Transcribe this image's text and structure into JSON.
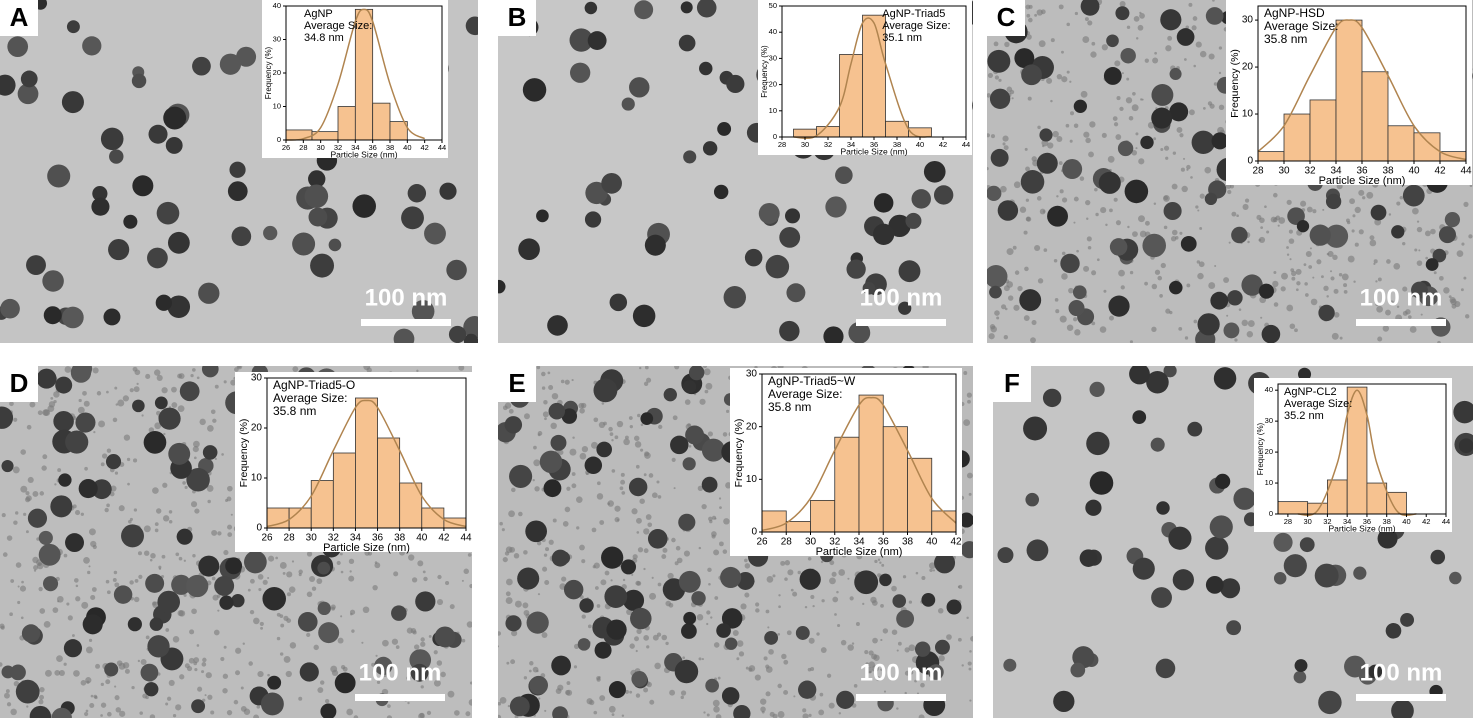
{
  "panels": [
    {
      "label": "A",
      "scale_bar": "100 nm"
    },
    {
      "label": "B",
      "scale_bar": "100 nm"
    },
    {
      "label": "C",
      "scale_bar": "100 nm"
    },
    {
      "label": "D",
      "scale_bar": "100 nm"
    },
    {
      "label": "E",
      "scale_bar": "100 nm"
    },
    {
      "label": "F",
      "scale_bar": "100 nm"
    }
  ],
  "chart_data": [
    {
      "type": "histogram",
      "annotations": [
        "AgNP",
        "Average Size:",
        "34.8 nm"
      ],
      "x_label": "Particle Size (nm)",
      "y_label": "Frequency (%)",
      "bins": [
        26,
        29,
        32,
        34,
        36,
        38,
        40
      ],
      "values": [
        3,
        2.5,
        10,
        39,
        11,
        5.5
      ],
      "color": "#f6c290",
      "fit": {
        "color": "#b0844f",
        "x": [
          26,
          28,
          30,
          32,
          34,
          35,
          36,
          38,
          40,
          42
        ],
        "values": [
          0,
          0.4,
          3.7,
          16.7,
          35.4,
          39,
          35.4,
          16.7,
          3.7,
          0.4
        ]
      },
      "xlim": [
        26,
        44
      ],
      "xticks": [
        26,
        28,
        30,
        32,
        34,
        36,
        38,
        40,
        42,
        44
      ],
      "ylim": [
        0,
        40
      ],
      "yticks": [
        0,
        10,
        20,
        30,
        40
      ]
    },
    {
      "type": "histogram",
      "annotations": [
        "AgNP-Triad5",
        "Average Size:",
        "35.1 nm"
      ],
      "x_label": "Particle Size (nm)",
      "y_label": "Frequency (%)",
      "bins": [
        29,
        31,
        33,
        35,
        37,
        39,
        41
      ],
      "values": [
        3,
        4,
        31.5,
        46.5,
        6,
        3.5
      ],
      "color": "#f6c290",
      "fit": {
        "color": "#b0844f",
        "x": [
          29,
          31,
          33,
          34,
          35,
          36,
          37,
          39,
          41
        ],
        "values": [
          0,
          0.5,
          11.5,
          28,
          43.5,
          43.5,
          28,
          3,
          0.1
        ]
      },
      "xlim": [
        28,
        44
      ],
      "xticks": [
        28,
        30,
        32,
        34,
        36,
        38,
        40,
        42,
        44
      ],
      "ylim": [
        0,
        50
      ],
      "yticks": [
        0,
        10,
        20,
        30,
        40,
        50
      ]
    },
    {
      "type": "histogram",
      "annotations": [
        "AgNP-HSD",
        "Average Size:",
        "35.8 nm"
      ],
      "x_label": "Particle Size (nm)",
      "y_label": "Frequency (%)",
      "bins": [
        28,
        30,
        32,
        34,
        36,
        38,
        40,
        42,
        44
      ],
      "values": [
        2,
        10,
        13,
        30,
        19,
        7.5,
        6,
        2
      ],
      "color": "#f6c290",
      "fit": {
        "color": "#b0844f",
        "x": [
          28,
          30,
          32,
          34,
          35,
          36,
          38,
          40,
          42,
          44
        ],
        "values": [
          2,
          7.5,
          18.2,
          28.4,
          30,
          28.4,
          18.2,
          7.5,
          2,
          0.3
        ]
      },
      "xlim": [
        28,
        44
      ],
      "xticks": [
        28,
        30,
        32,
        34,
        36,
        38,
        40,
        42,
        44
      ],
      "ylim": [
        0,
        33
      ],
      "yticks": [
        0,
        10,
        20,
        30
      ]
    },
    {
      "type": "histogram",
      "annotations": [
        "AgNP-Triad5-O",
        "Average Size:",
        "35.8 nm"
      ],
      "x_label": "Particle Size (nm)",
      "y_label": "Frequency (%)",
      "bins": [
        26,
        28,
        30,
        32,
        34,
        36,
        38,
        40,
        42,
        44
      ],
      "values": [
        4,
        4,
        9.5,
        15,
        26,
        18,
        9,
        4,
        2
      ],
      "color": "#f6c290",
      "fit": {
        "color": "#b0844f",
        "x": [
          26,
          28,
          30,
          32,
          34,
          35,
          36,
          38,
          40,
          42,
          44
        ],
        "values": [
          0.3,
          1.7,
          6.4,
          15.5,
          24.1,
          25.5,
          24.1,
          15.5,
          6.4,
          1.7,
          0.3
        ]
      },
      "xlim": [
        26,
        44
      ],
      "xticks": [
        26,
        28,
        30,
        32,
        34,
        36,
        38,
        40,
        42,
        44
      ],
      "ylim": [
        0,
        30
      ],
      "yticks": [
        0,
        10,
        20,
        30
      ]
    },
    {
      "type": "histogram",
      "annotations": [
        "AgNP-Triad5~W",
        "Average Size:",
        "35.8 nm"
      ],
      "x_label": "Particle Size (nm)",
      "y_label": "Frequency (%)",
      "bins": [
        26,
        28,
        30,
        32,
        34,
        36,
        38,
        40,
        42
      ],
      "values": [
        4,
        2,
        6,
        18,
        26,
        20,
        14,
        4
      ],
      "color": "#f6c290",
      "fit": {
        "color": "#b0844f",
        "x": [
          26,
          28,
          30,
          32,
          34,
          35,
          36,
          38,
          40,
          42
        ],
        "values": [
          0.3,
          1.7,
          6.4,
          15.5,
          24.1,
          25.5,
          24.1,
          15.5,
          6.4,
          1.7
        ]
      },
      "xlim": [
        26,
        42
      ],
      "xticks": [
        26,
        28,
        30,
        32,
        34,
        36,
        38,
        40,
        42
      ],
      "ylim": [
        0,
        30
      ],
      "yticks": [
        0,
        10,
        20,
        30
      ]
    },
    {
      "type": "histogram",
      "annotations": [
        "AgNP-CL2",
        "Average Size:",
        "35.2 nm"
      ],
      "x_label": "Particle Size (nm)",
      "y_label": "Frequency (%)",
      "bins": [
        27,
        30,
        32,
        34,
        36,
        38,
        40
      ],
      "values": [
        4,
        3.5,
        11,
        41,
        10,
        7
      ],
      "color": "#f6c290",
      "fit": {
        "color": "#b0844f",
        "x": [
          29,
          31,
          33,
          34,
          35,
          36,
          37,
          39,
          41
        ],
        "values": [
          0,
          1.1,
          16.4,
          32,
          40,
          32,
          16.4,
          1.1,
          0
        ]
      },
      "xlim": [
        27,
        44
      ],
      "xticks": [
        28,
        30,
        32,
        34,
        36,
        38,
        40,
        42,
        44
      ],
      "ylim": [
        0,
        42
      ],
      "yticks": [
        0,
        10,
        20,
        30,
        40
      ]
    }
  ]
}
